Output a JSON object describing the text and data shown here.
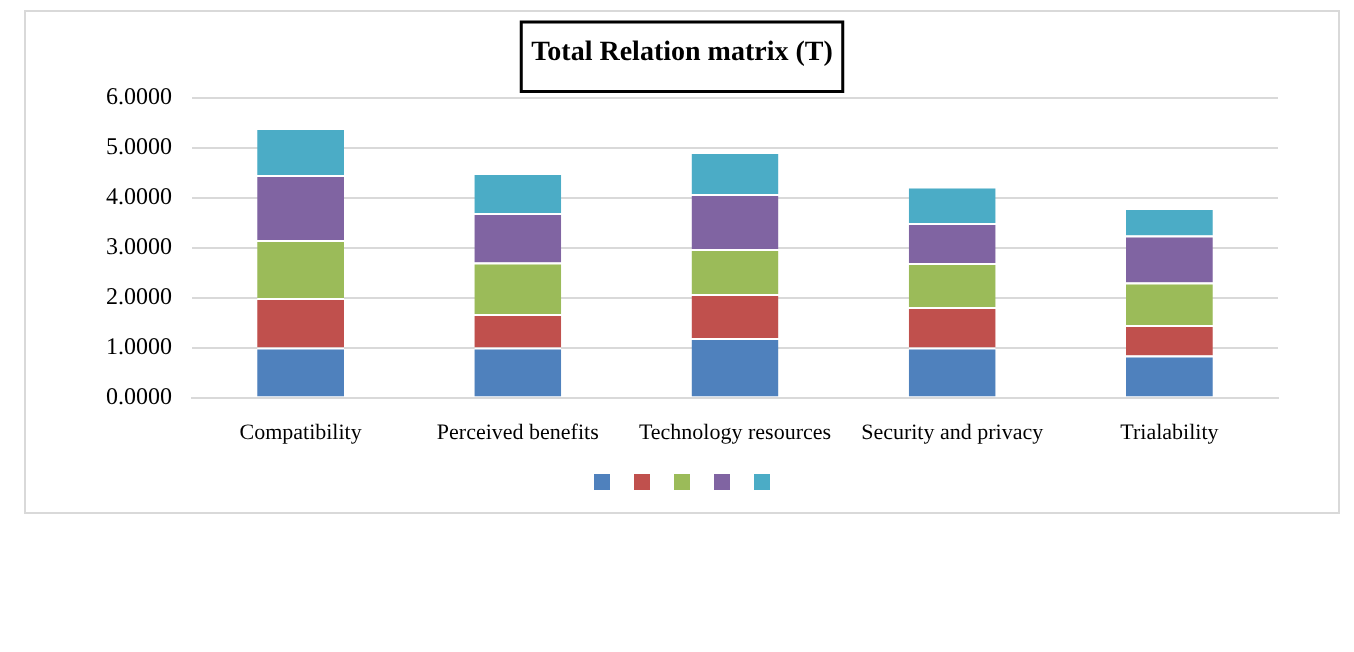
{
  "chart_data": {
    "type": "bar",
    "title": "Total Relation matrix (T)",
    "stacked": true,
    "categories": [
      "Compatibility",
      "Perceived benefits",
      "Technology resources",
      "Security and privacy",
      "Trialability"
    ],
    "series": [
      {
        "color": "#4f81bd",
        "values": [
          1.0,
          1.0,
          1.19,
          1.0,
          0.84
        ]
      },
      {
        "color": "#c0504d",
        "values": [
          0.99,
          0.67,
          0.88,
          0.81,
          0.61
        ]
      },
      {
        "color": "#9bbb59",
        "values": [
          1.16,
          1.03,
          0.9,
          0.88,
          0.85
        ]
      },
      {
        "color": "#8064a2",
        "values": [
          1.3,
          0.99,
          1.1,
          0.8,
          0.94
        ]
      },
      {
        "color": "#4bacc6",
        "values": [
          0.94,
          0.8,
          0.84,
          0.73,
          0.55
        ]
      }
    ],
    "ylim": [
      0,
      6
    ],
    "yticks": [
      {
        "value": 0,
        "label": "0.0000"
      },
      {
        "value": 1,
        "label": "1.0000"
      },
      {
        "value": 2,
        "label": "2.0000"
      },
      {
        "value": 3,
        "label": "3.0000"
      },
      {
        "value": 4,
        "label": "4.0000"
      },
      {
        "value": 5,
        "label": "5.0000"
      },
      {
        "value": 6,
        "label": "6.0000"
      }
    ],
    "grid": "y"
  }
}
